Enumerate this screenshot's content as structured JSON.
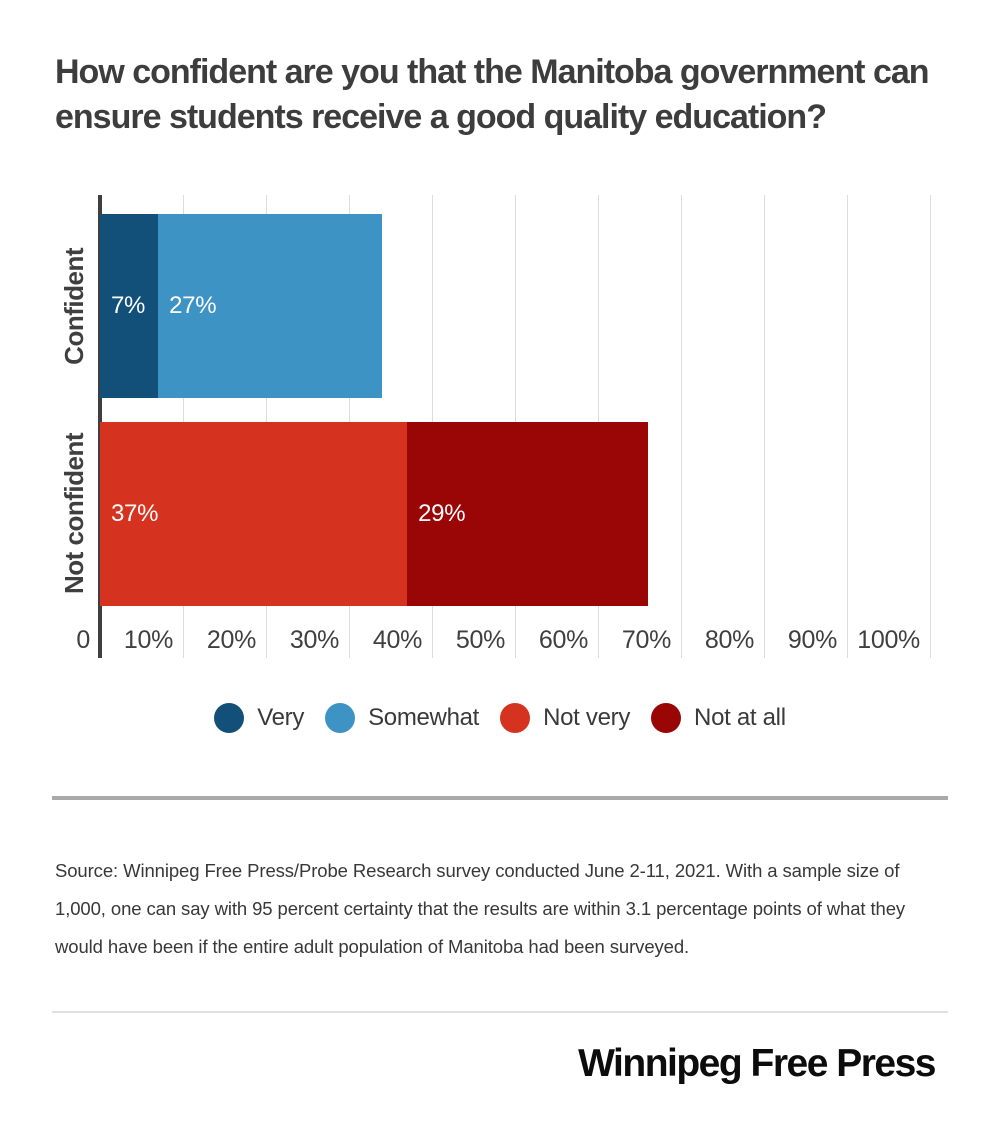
{
  "title": "How confident are you that the Manitoba government can ensure students receive a good quality education?",
  "chart_data": {
    "type": "bar",
    "orientation": "horizontal",
    "stacked": true,
    "title": "How confident are you that the Manitoba government can ensure students receive a good quality education?",
    "categories": [
      "Confident",
      "Not confident"
    ],
    "series": [
      {
        "name": "Very",
        "color": "#125079",
        "values": [
          7,
          0
        ]
      },
      {
        "name": "Somewhat",
        "color": "#3e93c5",
        "values": [
          27,
          0
        ]
      },
      {
        "name": "Not very",
        "color": "#d5331f",
        "values": [
          0,
          37
        ]
      },
      {
        "name": "Not at all",
        "color": "#9a0506",
        "values": [
          0,
          29
        ]
      }
    ],
    "category_totals": [
      34,
      66
    ],
    "value_labels": [
      [
        "7%",
        "27%"
      ],
      [
        "37%",
        "29%"
      ]
    ],
    "xlabel": "",
    "ylabel": "",
    "xlim": [
      0,
      100
    ],
    "x_ticks": [
      "0",
      "10%",
      "20%",
      "30%",
      "40%",
      "50%",
      "60%",
      "70%",
      "80%",
      "90%",
      "100%"
    ],
    "grid": "vertical",
    "legend_position": "bottom"
  },
  "legend": {
    "items": [
      {
        "label": "Very",
        "color": "#125079"
      },
      {
        "label": "Somewhat",
        "color": "#3e93c5"
      },
      {
        "label": "Not very",
        "color": "#d5331f"
      },
      {
        "label": "Not at all",
        "color": "#9a0506"
      }
    ]
  },
  "source": {
    "text": "Source: Winnipeg Free Press/Probe Research survey conducted June 2-11, 2021. With a sample size of 1,000, one can say with 95 percent certainty that the results are within 3.1 percentage points of what they would have been if the entire adult population of Manitoba had been surveyed."
  },
  "footer": {
    "logo_text": "Winnipeg Free Press"
  },
  "style": {
    "axis_color": "#3f3f3f",
    "gridline_color": "#dcdcdc",
    "title_color": "#3d3d3d",
    "divider_strong": "#a9a9a9",
    "divider_light": "#e0e0e0"
  }
}
